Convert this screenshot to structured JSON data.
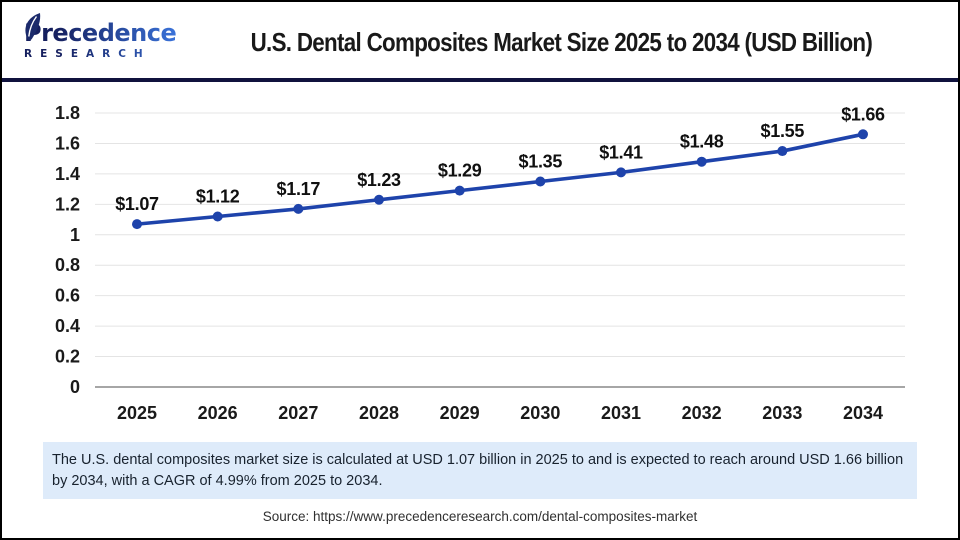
{
  "header": {
    "logo_name": "Precedence",
    "logo_subname": "RESEARCH",
    "title": "U.S. Dental Composites Market Size 2025 to 2034 (USD Billion)"
  },
  "chart_data": {
    "type": "line",
    "title": "U.S. Dental Composites Market Size 2025 to 2034 (USD Billion)",
    "x": [
      "2025",
      "2026",
      "2027",
      "2028",
      "2029",
      "2030",
      "2031",
      "2032",
      "2033",
      "2034"
    ],
    "series": [
      {
        "name": "U.S. dental composites market size (USD Billion)",
        "values": [
          1.07,
          1.12,
          1.17,
          1.23,
          1.29,
          1.35,
          1.41,
          1.48,
          1.55,
          1.66
        ]
      }
    ],
    "point_labels": [
      "$1.07",
      "$1.12",
      "$1.17",
      "$1.23",
      "$1.29",
      "$1.35",
      "$1.41",
      "$1.48",
      "$1.55",
      "$1.66"
    ],
    "xlabel": "",
    "ylabel": "",
    "ylim": [
      0,
      1.8
    ],
    "yticks": [
      "0",
      "0.2",
      "0.4",
      "0.6",
      "0.8",
      "1",
      "1.2",
      "1.4",
      "1.6",
      "1.8"
    ],
    "grid": true,
    "legend": "none",
    "line_color": "#1e43ab",
    "grid_color": "#e4e4e4",
    "axis_color": "#a6a6a6",
    "label_color": "#1a1a1a"
  },
  "summary": {
    "text": "The U.S. dental composites market size is calculated at USD 1.07 billion in 2025 to and is expected to reach around USD 1.66 billion by 2034, with a CAGR of 4.99% from 2025 to 2034."
  },
  "source": {
    "text": "Source: https://www.precedenceresearch.com/dental-composites-market"
  },
  "colors": {
    "divider_navy": "#10123d",
    "logo_dark": "#151f5e",
    "logo_light": "#3a72d9",
    "summary_bg": "#deebfa",
    "frame_border": "#000000"
  }
}
